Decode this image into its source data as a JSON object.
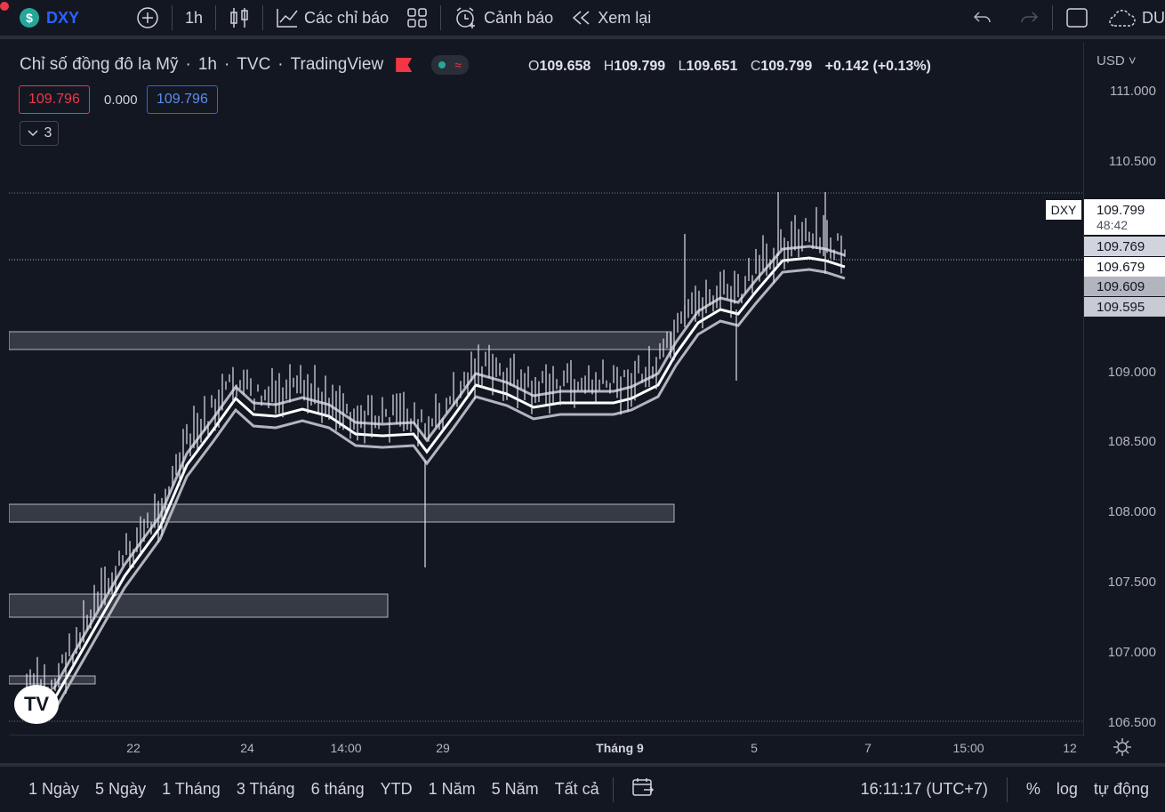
{
  "toolbar": {
    "symbol_badge": "$",
    "symbol": "DXY",
    "interval": "1h",
    "indicators_label": "Các chỉ báo",
    "alert_label": "Cảnh báo",
    "replay_label": "Xem lại",
    "cut_label": "DU"
  },
  "legend": {
    "title": "Chỉ số đồng đô la Mỹ",
    "interval": "1h",
    "exchange": "TVC",
    "source": "TradingView",
    "ohlc": {
      "o_label": "O",
      "o": "109.658",
      "h_label": "H",
      "h": "109.799",
      "l_label": "L",
      "l": "109.651",
      "c_label": "C",
      "c": "109.799",
      "change": "+0.142 (+0.13%)"
    },
    "indicator": {
      "bid": "109.796",
      "spread": "0.000",
      "ask": "109.796"
    },
    "collapse_count": "3"
  },
  "price_axis": {
    "currency": "USD",
    "ticks": [
      "111.000",
      "110.500",
      "110.000",
      "109.500",
      "109.000",
      "108.500",
      "108.000",
      "107.500",
      "107.000",
      "106.500"
    ],
    "tags": {
      "symbol": "DXY",
      "last": "109.799",
      "countdown": "48:42",
      "ema_upper": "109.769",
      "ema_mid": "109.679",
      "ema_lower": "109.609",
      "ema_lowest": "109.595"
    }
  },
  "time_axis": {
    "labels": [
      "22",
      "24",
      "14:00",
      "29",
      "Tháng 9",
      "5",
      "7",
      "15:00",
      "12"
    ]
  },
  "bottom_bar": {
    "ranges": [
      "1 Ngày",
      "5 Ngày",
      "1 Tháng",
      "3 Tháng",
      "6 tháng",
      "YTD",
      "1 Năm",
      "5 Năm",
      "Tất cả"
    ],
    "clock": "16:11:17 (UTC+7)",
    "percent": "%",
    "log": "log",
    "auto": "tự động"
  },
  "colors": {
    "background": "#131722",
    "candle": "#e0e3eb",
    "band": "#b2b5be",
    "zone": "#3a3d47",
    "up": "#26a69a",
    "down": "#f23645",
    "accent": "#2962ff"
  },
  "icons": {
    "add": "plus-circle-icon",
    "candles": "candlestick-icon",
    "indicators": "chart-line-icon",
    "layouts": "grid-icon",
    "alert": "alarm-clock-icon",
    "replay": "rewind-icon",
    "undo": "undo-icon",
    "redo": "redo-icon",
    "fullscreen": "square-icon",
    "cloud": "cloud-icon",
    "settings": "gear-icon",
    "goto": "calendar-range-icon"
  }
}
